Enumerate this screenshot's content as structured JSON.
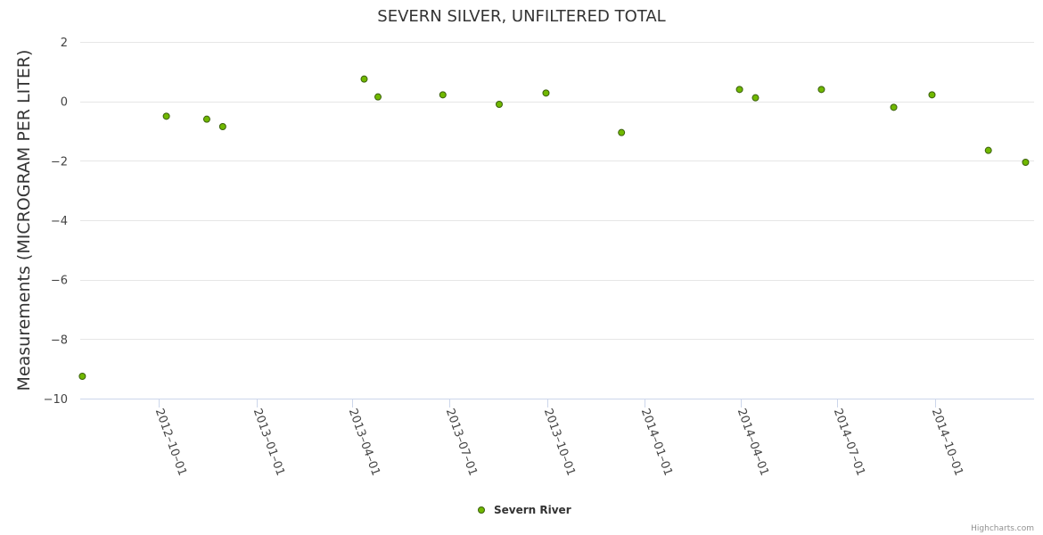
{
  "chart_data": {
    "type": "scatter",
    "title": "SEVERN SILVER, UNFILTERED TOTAL",
    "xlabel": "",
    "ylabel": "Measurements (MICROGRAM PER LITER)",
    "ylim": [
      -10,
      2
    ],
    "yticks": [
      2,
      0,
      -2,
      -4,
      -6,
      -8,
      -10
    ],
    "xlim": [
      "2012-07-19",
      "2015-01-02"
    ],
    "xticks": [
      "2012-10-01",
      "2013-01-01",
      "2013-04-01",
      "2013-07-01",
      "2013-10-01",
      "2014-01-01",
      "2014-04-01",
      "2014-07-01",
      "2014-10-01"
    ],
    "grid": true,
    "legend_position": "bottom-center",
    "color": "#70b800",
    "series": [
      {
        "name": "Severn River",
        "points": [
          {
            "x": "2012-07-21",
            "y": -9.25
          },
          {
            "x": "2012-10-08",
            "y": -0.5
          },
          {
            "x": "2012-11-15",
            "y": -0.6
          },
          {
            "x": "2012-11-30",
            "y": -0.85
          },
          {
            "x": "2013-04-12",
            "y": 0.75
          },
          {
            "x": "2013-04-25",
            "y": 0.15
          },
          {
            "x": "2013-06-25",
            "y": 0.22
          },
          {
            "x": "2013-08-17",
            "y": -0.1
          },
          {
            "x": "2013-09-30",
            "y": 0.28
          },
          {
            "x": "2013-12-10",
            "y": -1.05
          },
          {
            "x": "2014-03-31",
            "y": 0.4
          },
          {
            "x": "2014-04-15",
            "y": 0.12
          },
          {
            "x": "2014-06-16",
            "y": 0.4
          },
          {
            "x": "2014-08-23",
            "y": -0.2
          },
          {
            "x": "2014-09-28",
            "y": 0.22
          },
          {
            "x": "2014-11-20",
            "y": -1.65
          },
          {
            "x": "2014-12-25",
            "y": -2.05
          }
        ]
      }
    ]
  },
  "credits": "Highcharts.com"
}
